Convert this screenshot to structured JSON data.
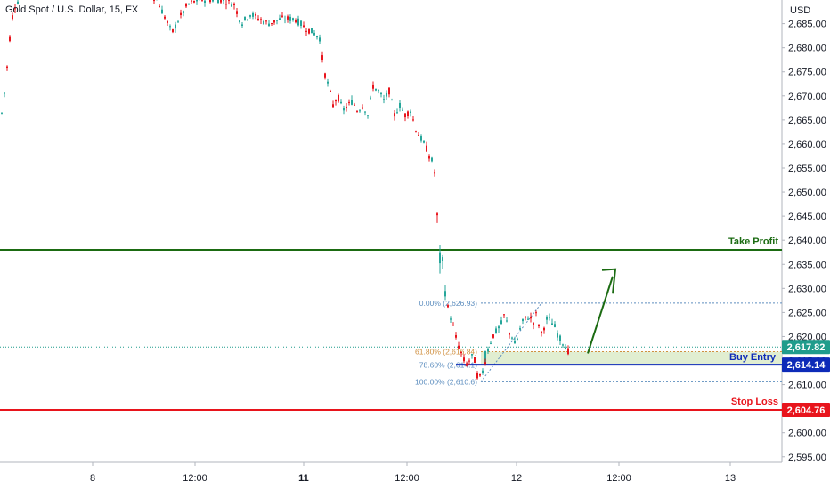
{
  "chart_data": {
    "type": "candlestick",
    "title": "Gold Spot / U.S. Dollar, 15, FX",
    "currency": "USD",
    "ylim": [
      2592,
      2689
    ],
    "y_ticks": [
      "2,595.00",
      "2,600.00",
      "2,605.00",
      "2,610.00",
      "2,615.00",
      "2,620.00",
      "2,625.00",
      "2,630.00",
      "2,635.00",
      "2,640.00",
      "2,645.00",
      "2,650.00",
      "2,655.00",
      "2,660.00",
      "2,665.00",
      "2,670.00",
      "2,675.00",
      "2,680.00",
      "2,685.00"
    ],
    "x_ticks": [
      {
        "label": "8",
        "bold": false
      },
      {
        "label": "12:00",
        "bold": false
      },
      {
        "label": "11",
        "bold": true
      },
      {
        "label": "12:00",
        "bold": false
      },
      {
        "label": "12",
        "bold": false
      },
      {
        "label": "12:00",
        "bold": false
      },
      {
        "label": "13",
        "bold": false
      }
    ],
    "price_path": [
      [
        0,
        2665
      ],
      [
        5,
        2672
      ],
      [
        10,
        2682
      ],
      [
        14,
        2688
      ],
      [
        20,
        2690
      ],
      [
        28,
        2692
      ],
      [
        45,
        2692
      ],
      [
        70,
        2692
      ],
      [
        100,
        2692
      ],
      [
        130,
        2692
      ],
      [
        160,
        2692
      ],
      [
        175,
        2690
      ],
      [
        185,
        2686
      ],
      [
        192,
        2683
      ],
      [
        200,
        2686
      ],
      [
        210,
        2689
      ],
      [
        222,
        2690
      ],
      [
        235,
        2690
      ],
      [
        248,
        2690
      ],
      [
        262,
        2689
      ],
      [
        270,
        2685
      ],
      [
        280,
        2687
      ],
      [
        290,
        2686
      ],
      [
        300,
        2685
      ],
      [
        315,
        2686
      ],
      [
        330,
        2686
      ],
      [
        343,
        2684
      ],
      [
        352,
        2683
      ],
      [
        358,
        2682
      ],
      [
        363,
        2675
      ],
      [
        368,
        2672
      ],
      [
        373,
        2668
      ],
      [
        378,
        2670
      ],
      [
        384,
        2667
      ],
      [
        390,
        2668
      ],
      [
        395,
        2669
      ],
      [
        400,
        2667
      ],
      [
        407,
        2668
      ],
      [
        412,
        2666
      ],
      [
        418,
        2672
      ],
      [
        424,
        2671
      ],
      [
        430,
        2669
      ],
      [
        436,
        2671
      ],
      [
        442,
        2666
      ],
      [
        448,
        2668
      ],
      [
        454,
        2666
      ],
      [
        460,
        2667
      ],
      [
        466,
        2663
      ],
      [
        472,
        2661
      ],
      [
        478,
        2659
      ],
      [
        482,
        2657
      ],
      [
        486,
        2656
      ],
      [
        489,
        2650
      ],
      [
        491,
        2639
      ],
      [
        493,
        2636
      ],
      [
        496,
        2635
      ],
      [
        499,
        2630
      ],
      [
        502,
        2626
      ],
      [
        505,
        2624
      ],
      [
        508,
        2622
      ],
      [
        512,
        2619
      ],
      [
        516,
        2617
      ],
      [
        520,
        2615
      ],
      [
        524,
        2614
      ],
      [
        528,
        2616
      ],
      [
        532,
        2615
      ],
      [
        536,
        2611
      ],
      [
        540,
        2612
      ],
      [
        544,
        2615
      ],
      [
        548,
        2618
      ],
      [
        552,
        2620
      ],
      [
        556,
        2621
      ],
      [
        560,
        2622
      ],
      [
        563,
        2623
      ],
      [
        566,
        2625
      ],
      [
        570,
        2621
      ],
      [
        574,
        2620
      ],
      [
        578,
        2618
      ],
      [
        582,
        2621
      ],
      [
        586,
        2623
      ],
      [
        590,
        2624
      ],
      [
        594,
        2624
      ],
      [
        598,
        2623
      ],
      [
        602,
        2625
      ],
      [
        606,
        2620
      ],
      [
        610,
        2622
      ],
      [
        614,
        2624
      ],
      [
        618,
        2623
      ],
      [
        622,
        2622
      ],
      [
        626,
        2620
      ],
      [
        630,
        2619
      ],
      [
        634,
        2618
      ],
      [
        637,
        2617
      ]
    ],
    "levels": {
      "take_profit": {
        "label": "Take Profit",
        "value": 2638.0,
        "color": "#1b6b12"
      },
      "buy_entry": {
        "label": "Buy Entry",
        "value": 2614.14,
        "tag": "2,614.14",
        "color": "#0d2ab8"
      },
      "stop_loss": {
        "label": "Stop Loss",
        "value": 2604.76,
        "tag": "2,604.76",
        "color": "#e8141c"
      },
      "current_price": {
        "value": 2617.82,
        "tag": "2,617.82",
        "color": "#1f9c8c"
      }
    },
    "fibonacci": [
      {
        "label": "0.00% (2,626.93)",
        "value": 2626.93,
        "color": "#5d8ebf"
      },
      {
        "label": "61.80% (2,616.84)",
        "value": 2616.84,
        "color": "#d09040"
      },
      {
        "label": "78.60% (2,614.1)",
        "value": 2614.1,
        "color": "#5d8ebf"
      },
      {
        "label": "100.00% (2,610.6)",
        "value": 2610.6,
        "color": "#5d8ebf"
      }
    ],
    "colors": {
      "up": "#26a69a",
      "down": "#e8141c",
      "arrow": "#1b6b12",
      "zone": "#dcebc9"
    }
  }
}
